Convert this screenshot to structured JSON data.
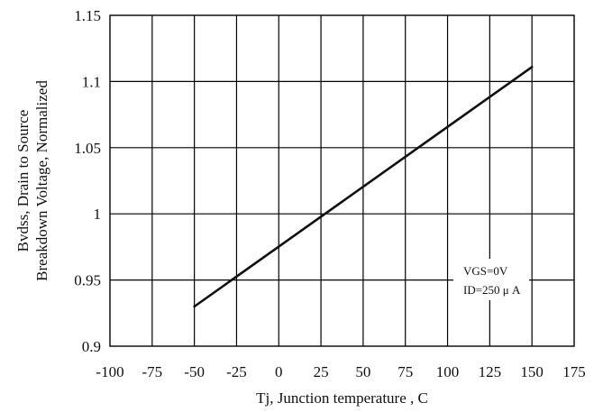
{
  "chart_data": {
    "type": "line",
    "title": "",
    "xlabel": "Tj, Junction temperature , C",
    "ylabel_lines": [
      "Bvdss, Drain to Source",
      "Breakdown Voltage, Normalized"
    ],
    "xlim": [
      -100,
      175
    ],
    "ylim": [
      0.9,
      1.15
    ],
    "x_ticks": [
      -100,
      -75,
      -50,
      -25,
      0,
      25,
      50,
      75,
      100,
      125,
      150,
      175
    ],
    "x_tick_labels": [
      "-100",
      "-75",
      "-50",
      "-25",
      "0",
      "25",
      "50",
      "75",
      "100",
      "125",
      "150",
      "175"
    ],
    "y_ticks": [
      0.9,
      0.95,
      1.0,
      1.05,
      1.1,
      1.15
    ],
    "y_tick_labels": [
      "0.9",
      "0.95",
      "1",
      "1.05",
      "1.1",
      "1.15"
    ],
    "grid": true,
    "series": [
      {
        "x": [
          -50,
          150
        ],
        "y": [
          0.93,
          1.111
        ]
      }
    ],
    "annotations": [
      "VGS=0V",
      "ID=250 μ A"
    ],
    "line_color": "#111111",
    "grid_color": "#000000"
  }
}
